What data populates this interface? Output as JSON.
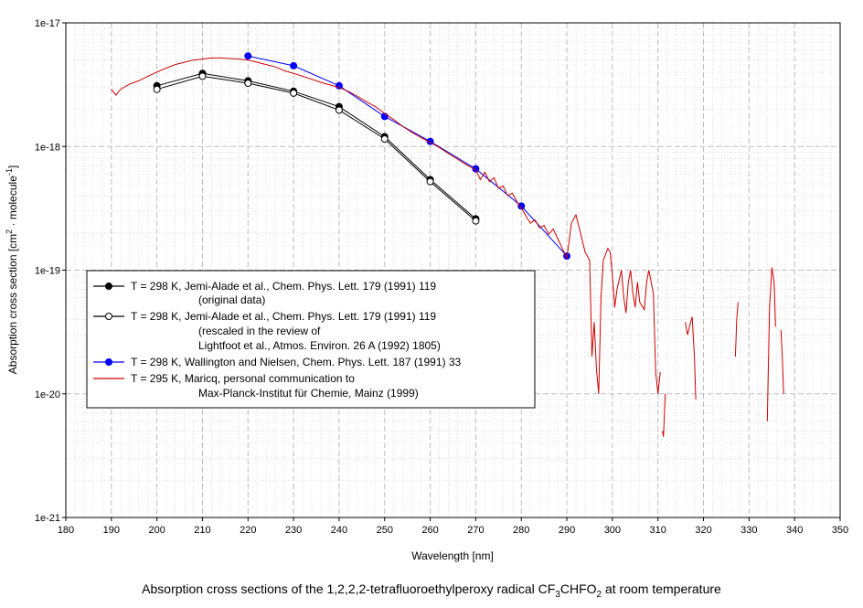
{
  "chart_data": {
    "type": "line",
    "title": "",
    "caption": {
      "prefix": "Absorption cross sections of the 1,2,2,2-tetrafluoroethylperoxy radical CF",
      "sub1": "3",
      "mid": "CHFO",
      "sub2": "2",
      "suffix": " at room temperature"
    },
    "xlabel": "Wavelength [nm]",
    "ylabel": {
      "prefix": "Absorption cross section [cm",
      "sup1": "2",
      "mid": " · molecule",
      "sup2": "-1",
      "suffix": "]"
    },
    "xlim": [
      180,
      350
    ],
    "ylim": [
      1e-21,
      1e-17
    ],
    "yscale": "log",
    "grid": true,
    "x_ticks": [
      180,
      190,
      200,
      210,
      220,
      230,
      240,
      250,
      260,
      270,
      280,
      290,
      300,
      310,
      320,
      330,
      340,
      350
    ],
    "y_ticks": [
      {
        "value": 1e-21,
        "label": "1e-21"
      },
      {
        "value": 1e-20,
        "label": "1e-20"
      },
      {
        "value": 1e-19,
        "label": "1e-19"
      },
      {
        "value": 1e-18,
        "label": "1e-18"
      },
      {
        "value": 1e-17,
        "label": "1e-17"
      }
    ],
    "legend_position": "center-left",
    "series": [
      {
        "name": "jemi-original",
        "color": "#000000",
        "marker": "filled-circle",
        "legend_lines": [
          "T = 298 K, Jemi-Alade et al., Chem. Phys. Lett. 179 (1991) 119",
          "(original data)"
        ],
        "x": [
          200,
          210,
          220,
          230,
          240,
          250,
          260,
          270
        ],
        "y": [
          3.1e-18,
          3.9e-18,
          3.4e-18,
          2.8e-18,
          2.1e-18,
          1.2e-18,
          5.4e-19,
          2.6e-19
        ]
      },
      {
        "name": "jemi-rescaled",
        "color": "#000000",
        "marker": "open-circle",
        "legend_lines": [
          "T = 298 K, Jemi-Alade et al., Chem. Phys. Lett. 179 (1991) 119",
          "(rescaled in the review of",
          "Lightfoot et al., Atmos. Environ. 26 A (1992) 1805)"
        ],
        "x": [
          200,
          210,
          220,
          230,
          240,
          250,
          260,
          270
        ],
        "y": [
          2.9e-18,
          3.7e-18,
          3.25e-18,
          2.7e-18,
          1.97e-18,
          1.15e-18,
          5.2e-19,
          2.5e-19
        ]
      },
      {
        "name": "wallington",
        "color": "#0000ff",
        "marker": "filled-circle",
        "legend_lines": [
          "T = 298 K, Wallington and Nielsen, Chem. Phys. Lett. 187 (1991) 33"
        ],
        "x": [
          220,
          230,
          240,
          250,
          260,
          270,
          280,
          290
        ],
        "y": [
          5.4e-18,
          4.5e-18,
          3.1e-18,
          1.75e-18,
          1.1e-18,
          6.6e-19,
          3.3e-19,
          1.3e-19
        ]
      },
      {
        "name": "maricq",
        "color": "#cc0000",
        "marker": "none",
        "legend_lines": [
          "T = 295 K, Maricq, personal communication to",
          "Max-Planck-Institut für Chemie, Mainz (1999)"
        ],
        "segments": [
          [
            [
              190,
              2.9e-18
            ],
            [
              191,
              2.6e-18
            ],
            [
              192,
              2.9e-18
            ],
            [
              194,
              3.2e-18
            ],
            [
              196,
              3.4e-18
            ],
            [
              198,
              3.7e-18
            ],
            [
              200,
              4e-18
            ],
            [
              202,
              4.3e-18
            ],
            [
              204,
              4.6e-18
            ],
            [
              206,
              4.8e-18
            ],
            [
              208,
              5e-18
            ],
            [
              210,
              5.1e-18
            ],
            [
              212,
              5.2e-18
            ],
            [
              214,
              5.2e-18
            ],
            [
              216,
              5.15e-18
            ],
            [
              218,
              5.1e-18
            ],
            [
              220,
              5e-18
            ],
            [
              222,
              4.8e-18
            ],
            [
              224,
              4.6e-18
            ],
            [
              226,
              4.4e-18
            ],
            [
              228,
              4.1e-18
            ],
            [
              230,
              3.9e-18
            ],
            [
              232,
              3.7e-18
            ],
            [
              234,
              3.5e-18
            ],
            [
              236,
              3.3e-18
            ],
            [
              238,
              3.15e-18
            ],
            [
              240,
              3e-18
            ],
            [
              242,
              2.8e-18
            ],
            [
              244,
              2.55e-18
            ],
            [
              246,
              2.3e-18
            ],
            [
              248,
              2.1e-18
            ],
            [
              250,
              1.85e-18
            ],
            [
              252,
              1.65e-18
            ],
            [
              254,
              1.45e-18
            ],
            [
              256,
              1.3e-18
            ],
            [
              258,
              1.18e-18
            ],
            [
              260,
              1.08e-18
            ],
            [
              262,
              9.8e-19
            ],
            [
              264,
              8.8e-19
            ],
            [
              266,
              7.9e-19
            ],
            [
              268,
              7.1e-19
            ],
            [
              270,
              6.5e-19
            ],
            [
              271,
              5.4e-19
            ],
            [
              272,
              6.2e-19
            ],
            [
              273,
              5.2e-19
            ],
            [
              274,
              5.6e-19
            ],
            [
              275,
              4.6e-19
            ],
            [
              276,
              4.8e-19
            ],
            [
              277,
              4e-19
            ],
            [
              278,
              4.2e-19
            ],
            [
              279,
              3.6e-19
            ],
            [
              280,
              3.2e-19
            ],
            [
              281,
              2.75e-19
            ],
            [
              282,
              2.4e-19
            ],
            [
              283,
              2.55e-19
            ],
            [
              284,
              2.2e-19
            ],
            [
              285,
              2.3e-19
            ],
            [
              286,
              1.95e-19
            ],
            [
              287,
              2.15e-19
            ],
            [
              288,
              1.8e-19
            ],
            [
              289,
              1.5e-19
            ],
            [
              290,
              1.25e-19
            ],
            [
              291,
              2.4e-19
            ],
            [
              292,
              2.8e-19
            ],
            [
              293,
              2e-19
            ],
            [
              294,
              1.4e-19
            ],
            [
              295,
              1.2e-19
            ],
            [
              295.5,
              2e-20
            ],
            [
              296,
              3.8e-20
            ],
            [
              296.5,
              1.6e-20
            ],
            [
              297,
              1e-20
            ],
            [
              297.5,
              6e-20
            ],
            [
              298,
              1.2e-19
            ],
            [
              299,
              1.5e-19
            ],
            [
              299.5,
              1.4e-19
            ],
            [
              300,
              9e-20
            ],
            [
              300.5,
              5e-20
            ],
            [
              301,
              7e-20
            ],
            [
              302,
              1e-19
            ],
            [
              302.5,
              6e-20
            ],
            [
              303,
              4.5e-20
            ],
            [
              303.5,
              8e-20
            ],
            [
              304,
              1e-19
            ],
            [
              304.5,
              6.5e-20
            ],
            [
              305,
              5e-20
            ],
            [
              305.5,
              8e-20
            ],
            [
              306,
              5.5e-20
            ],
            [
              307,
              4.8e-20
            ],
            [
              307.5,
              8e-20
            ],
            [
              308,
              1e-19
            ],
            [
              309,
              6.5e-20
            ],
            [
              309.5,
              1.5e-20
            ],
            [
              310,
              1e-20
            ],
            [
              310.5,
              1.5e-20
            ]
          ],
          [
            [
              311,
              5e-21
            ],
            [
              311.2,
              4.5e-21
            ],
            [
              311.6,
              1e-20
            ]
          ],
          [
            [
              316,
              3.8e-20
            ],
            [
              316.5,
              3e-20
            ],
            [
              317,
              3.6e-20
            ],
            [
              317.5,
              4.2e-20
            ],
            [
              318,
              2e-20
            ],
            [
              318.3,
              9e-21
            ]
          ],
          [
            [
              327,
              2e-20
            ],
            [
              327.3,
              4e-20
            ],
            [
              327.6,
              5.5e-20
            ]
          ],
          [
            [
              334,
              6e-21
            ],
            [
              334.5,
              5e-20
            ],
            [
              335,
              1.05e-19
            ],
            [
              335.5,
              8e-20
            ],
            [
              335.8,
              3.5e-20
            ]
          ],
          [
            [
              337,
              3.3e-20
            ],
            [
              337.3,
              2e-20
            ],
            [
              337.6,
              1e-20
            ]
          ]
        ]
      }
    ]
  }
}
